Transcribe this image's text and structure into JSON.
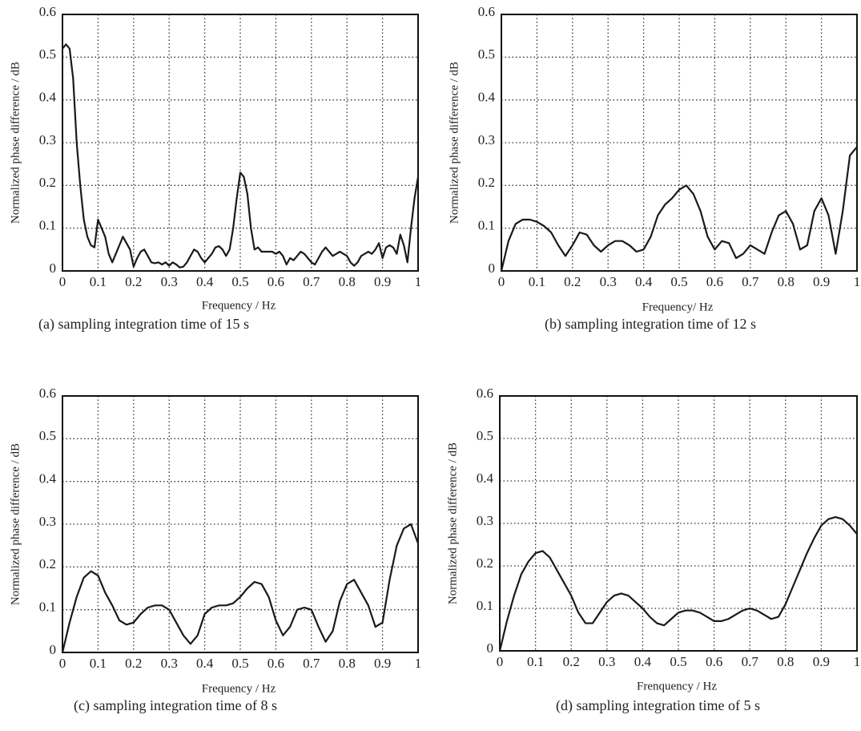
{
  "chart_data": [
    {
      "type": "line",
      "ylabel": "Normalized phase difference / dB",
      "xlabel": "Frequency / Hz",
      "caption": "(a) sampling integration time of 15 s",
      "xlim": [
        0,
        1
      ],
      "ylim": [
        0,
        0.6
      ],
      "xticks": [
        0,
        0.1,
        0.2,
        0.3,
        0.4,
        0.5,
        0.6,
        0.7,
        0.8,
        0.9,
        1
      ],
      "yticks": [
        0,
        0.1,
        0.2,
        0.3,
        0.4,
        0.5,
        0.6
      ],
      "grid": true,
      "color": "#1a1a1a",
      "x": [
        0,
        0.01,
        0.02,
        0.03,
        0.04,
        0.05,
        0.06,
        0.07,
        0.08,
        0.09,
        0.1,
        0.11,
        0.12,
        0.13,
        0.14,
        0.15,
        0.16,
        0.17,
        0.18,
        0.19,
        0.2,
        0.21,
        0.22,
        0.23,
        0.24,
        0.25,
        0.26,
        0.27,
        0.28,
        0.29,
        0.3,
        0.31,
        0.32,
        0.33,
        0.34,
        0.35,
        0.36,
        0.37,
        0.38,
        0.39,
        0.4,
        0.41,
        0.42,
        0.43,
        0.44,
        0.45,
        0.46,
        0.47,
        0.48,
        0.49,
        0.5,
        0.51,
        0.52,
        0.53,
        0.54,
        0.55,
        0.56,
        0.57,
        0.58,
        0.59,
        0.6,
        0.61,
        0.62,
        0.63,
        0.64,
        0.65,
        0.66,
        0.67,
        0.68,
        0.69,
        0.7,
        0.71,
        0.72,
        0.73,
        0.74,
        0.75,
        0.76,
        0.77,
        0.78,
        0.79,
        0.8,
        0.81,
        0.82,
        0.83,
        0.84,
        0.85,
        0.86,
        0.87,
        0.88,
        0.89,
        0.9,
        0.91,
        0.92,
        0.93,
        0.94,
        0.95,
        0.96,
        0.97,
        0.98,
        0.99,
        1
      ],
      "values": [
        0.52,
        0.53,
        0.52,
        0.45,
        0.3,
        0.2,
        0.12,
        0.08,
        0.06,
        0.055,
        0.12,
        0.1,
        0.08,
        0.04,
        0.02,
        0.04,
        0.06,
        0.08,
        0.065,
        0.05,
        0.01,
        0.03,
        0.045,
        0.05,
        0.035,
        0.02,
        0.018,
        0.02,
        0.015,
        0.02,
        0.012,
        0.02,
        0.015,
        0.008,
        0.01,
        0.02,
        0.035,
        0.05,
        0.045,
        0.03,
        0.02,
        0.03,
        0.04,
        0.055,
        0.058,
        0.05,
        0.035,
        0.05,
        0.1,
        0.17,
        0.23,
        0.22,
        0.18,
        0.1,
        0.05,
        0.055,
        0.045,
        0.045,
        0.045,
        0.045,
        0.04,
        0.045,
        0.035,
        0.015,
        0.03,
        0.025,
        0.035,
        0.045,
        0.04,
        0.03,
        0.02,
        0.015,
        0.03,
        0.045,
        0.055,
        0.045,
        0.035,
        0.04,
        0.045,
        0.04,
        0.035,
        0.02,
        0.012,
        0.02,
        0.035,
        0.04,
        0.045,
        0.04,
        0.05,
        0.065,
        0.03,
        0.055,
        0.06,
        0.055,
        0.04,
        0.085,
        0.06,
        0.02,
        0.1,
        0.17,
        0.22
      ]
    },
    {
      "type": "line",
      "ylabel": "Normalized phase difference / dB",
      "xlabel": "Frequency/ Hz",
      "caption": "(b) sampling integration time of 12 s",
      "xlim": [
        0,
        1
      ],
      "ylim": [
        0,
        0.6
      ],
      "xticks": [
        0,
        0.1,
        0.2,
        0.3,
        0.4,
        0.5,
        0.6,
        0.7,
        0.8,
        0.9,
        1
      ],
      "yticks": [
        0,
        0.1,
        0.2,
        0.3,
        0.4,
        0.5,
        0.6
      ],
      "grid": true,
      "color": "#1a1a1a",
      "x": [
        0,
        0.02,
        0.04,
        0.06,
        0.08,
        0.1,
        0.12,
        0.14,
        0.16,
        0.18,
        0.2,
        0.22,
        0.24,
        0.26,
        0.28,
        0.3,
        0.32,
        0.34,
        0.36,
        0.38,
        0.4,
        0.42,
        0.44,
        0.46,
        0.48,
        0.5,
        0.52,
        0.54,
        0.56,
        0.58,
        0.6,
        0.62,
        0.64,
        0.66,
        0.68,
        0.7,
        0.72,
        0.74,
        0.76,
        0.78,
        0.8,
        0.82,
        0.84,
        0.86,
        0.88,
        0.9,
        0.92,
        0.94,
        0.96,
        0.98,
        1
      ],
      "values": [
        0,
        0.07,
        0.11,
        0.12,
        0.12,
        0.115,
        0.105,
        0.09,
        0.06,
        0.035,
        0.06,
        0.09,
        0.085,
        0.06,
        0.045,
        0.06,
        0.07,
        0.07,
        0.06,
        0.045,
        0.05,
        0.08,
        0.13,
        0.155,
        0.17,
        0.19,
        0.2,
        0.18,
        0.14,
        0.08,
        0.05,
        0.07,
        0.065,
        0.03,
        0.04,
        0.06,
        0.05,
        0.04,
        0.09,
        0.13,
        0.14,
        0.11,
        0.05,
        0.06,
        0.14,
        0.17,
        0.13,
        0.04,
        0.14,
        0.27,
        0.29
      ]
    },
    {
      "type": "line",
      "ylabel": "Normalized phase difference / dB",
      "xlabel": "Frequency / Hz",
      "caption": "(c) sampling integration time of 8 s",
      "xlim": [
        0,
        1
      ],
      "ylim": [
        0,
        0.6
      ],
      "xticks": [
        0,
        0.1,
        0.2,
        0.3,
        0.4,
        0.5,
        0.6,
        0.7,
        0.8,
        0.9,
        1
      ],
      "yticks": [
        0,
        0.1,
        0.2,
        0.3,
        0.4,
        0.5,
        0.6
      ],
      "grid": true,
      "color": "#1a1a1a",
      "x": [
        0,
        0.02,
        0.04,
        0.06,
        0.08,
        0.1,
        0.12,
        0.14,
        0.16,
        0.18,
        0.2,
        0.22,
        0.24,
        0.26,
        0.28,
        0.3,
        0.32,
        0.34,
        0.36,
        0.38,
        0.4,
        0.42,
        0.44,
        0.46,
        0.48,
        0.5,
        0.52,
        0.54,
        0.56,
        0.58,
        0.6,
        0.62,
        0.64,
        0.66,
        0.68,
        0.7,
        0.72,
        0.74,
        0.76,
        0.78,
        0.8,
        0.82,
        0.84,
        0.86,
        0.88,
        0.9,
        0.92,
        0.94,
        0.96,
        0.98,
        1
      ],
      "values": [
        0,
        0.07,
        0.13,
        0.175,
        0.19,
        0.18,
        0.14,
        0.11,
        0.075,
        0.065,
        0.07,
        0.09,
        0.105,
        0.11,
        0.11,
        0.1,
        0.07,
        0.04,
        0.02,
        0.04,
        0.09,
        0.105,
        0.11,
        0.11,
        0.115,
        0.13,
        0.15,
        0.165,
        0.16,
        0.13,
        0.075,
        0.04,
        0.06,
        0.1,
        0.105,
        0.1,
        0.06,
        0.025,
        0.05,
        0.12,
        0.16,
        0.17,
        0.14,
        0.11,
        0.06,
        0.07,
        0.17,
        0.25,
        0.29,
        0.3,
        0.255
      ]
    },
    {
      "type": "line",
      "ylabel": "Normalized phase difference / dB",
      "xlabel": "Frenquency / Hz",
      "caption": "(d) sampling integration time of 5 s",
      "xlim": [
        0,
        1
      ],
      "ylim": [
        0,
        0.6
      ],
      "xticks": [
        0,
        0.1,
        0.2,
        0.3,
        0.4,
        0.5,
        0.6,
        0.7,
        0.8,
        0.9,
        1
      ],
      "yticks": [
        0,
        0.1,
        0.2,
        0.3,
        0.4,
        0.5,
        0.6
      ],
      "grid": true,
      "color": "#1a1a1a",
      "x": [
        0,
        0.02,
        0.04,
        0.06,
        0.08,
        0.1,
        0.12,
        0.14,
        0.16,
        0.18,
        0.2,
        0.22,
        0.24,
        0.26,
        0.28,
        0.3,
        0.32,
        0.34,
        0.36,
        0.38,
        0.4,
        0.42,
        0.44,
        0.46,
        0.48,
        0.5,
        0.52,
        0.54,
        0.56,
        0.58,
        0.6,
        0.62,
        0.64,
        0.66,
        0.68,
        0.7,
        0.72,
        0.74,
        0.76,
        0.78,
        0.8,
        0.82,
        0.84,
        0.86,
        0.88,
        0.9,
        0.92,
        0.94,
        0.96,
        0.98,
        1
      ],
      "values": [
        0,
        0.07,
        0.13,
        0.18,
        0.21,
        0.23,
        0.235,
        0.22,
        0.19,
        0.16,
        0.13,
        0.09,
        0.065,
        0.065,
        0.09,
        0.115,
        0.13,
        0.135,
        0.13,
        0.115,
        0.1,
        0.08,
        0.065,
        0.06,
        0.075,
        0.09,
        0.095,
        0.095,
        0.09,
        0.08,
        0.07,
        0.07,
        0.075,
        0.085,
        0.095,
        0.1,
        0.095,
        0.085,
        0.075,
        0.08,
        0.11,
        0.15,
        0.19,
        0.23,
        0.265,
        0.295,
        0.31,
        0.315,
        0.31,
        0.295,
        0.275
      ]
    }
  ]
}
